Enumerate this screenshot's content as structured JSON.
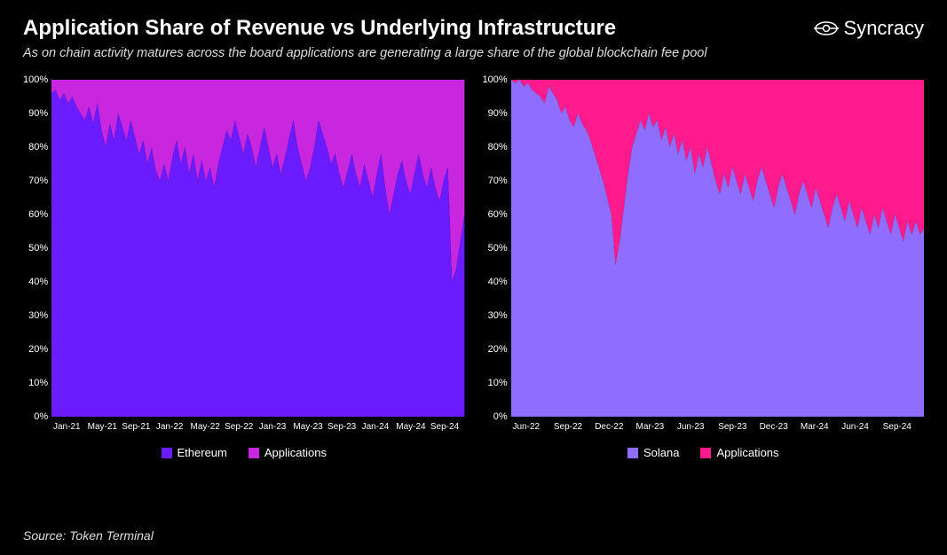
{
  "header": {
    "title": "Application Share of Revenue vs Underlying Infrastructure",
    "subtitle": "As on chain activity matures across the board applications are generating a large share of the global blockchain fee pool",
    "logo_text": "Syncracy"
  },
  "source": "Source: Token Terminal",
  "chart_common": {
    "type": "stacked-area-100pct",
    "ylim": [
      0,
      100
    ],
    "ytick_step": 10,
    "yticks": [
      "100%",
      "90%",
      "80%",
      "70%",
      "60%",
      "50%",
      "40%",
      "30%",
      "20%",
      "10%",
      "0%"
    ],
    "background_color": "#000000",
    "grid_color": "#444444",
    "axis_text_color": "#ffffff",
    "title_color": "#ffffff",
    "title_fontsize": 24,
    "subtitle_fontsize": 14.5,
    "label_fontsize": 11,
    "legend_fontsize": 13
  },
  "left_chart": {
    "name": "ethereum-share",
    "x_labels": [
      "Jan-21",
      "May-21",
      "Sep-21",
      "Jan-22",
      "May-22",
      "Sep-22",
      "Jan-23",
      "May-23",
      "Sep-23",
      "Jan-24",
      "May-24",
      "Sep-24"
    ],
    "legend": [
      {
        "label": "Ethereum",
        "color": "#6a1bff"
      },
      {
        "label": "Applications",
        "color": "#c926e0"
      }
    ],
    "series_bottom_color": "#6a1bff",
    "series_top_color": "#c926e0",
    "bottom_pct": [
      96,
      97,
      94,
      96,
      93,
      95,
      92,
      90,
      88,
      92,
      87,
      93,
      85,
      80,
      87,
      82,
      90,
      86,
      82,
      88,
      83,
      78,
      82,
      75,
      80,
      73,
      70,
      75,
      70,
      77,
      82,
      75,
      80,
      72,
      78,
      70,
      76,
      70,
      74,
      68,
      75,
      80,
      85,
      82,
      88,
      83,
      78,
      84,
      80,
      74,
      80,
      86,
      80,
      74,
      78,
      72,
      77,
      83,
      88,
      80,
      75,
      70,
      74,
      80,
      88,
      84,
      80,
      75,
      78,
      72,
      68,
      73,
      78,
      72,
      68,
      75,
      70,
      65,
      72,
      78,
      68,
      60,
      66,
      72,
      76,
      70,
      66,
      72,
      78,
      72,
      68,
      74,
      68,
      64,
      70,
      74,
      40,
      44,
      52,
      60
    ]
  },
  "right_chart": {
    "name": "solana-share",
    "x_labels": [
      "Jun-22",
      "Sep-22",
      "Dec-22",
      "Mar-23",
      "Jun-23",
      "Sep-23",
      "Dec-23",
      "Mar-24",
      "Jun-24",
      "Sep-24"
    ],
    "legend": [
      {
        "label": "Solana",
        "color": "#8f6eff"
      },
      {
        "label": "Applications",
        "color": "#ff1b8d"
      }
    ],
    "series_bottom_color": "#8f6eff",
    "series_top_color": "#ff1b8d",
    "bottom_pct": [
      100,
      99,
      100,
      98,
      99,
      97,
      96,
      95,
      93,
      98,
      96,
      94,
      90,
      92,
      88,
      86,
      90,
      87,
      85,
      82,
      78,
      74,
      70,
      65,
      60,
      45,
      52,
      62,
      72,
      80,
      84,
      88,
      85,
      90,
      86,
      88,
      82,
      86,
      80,
      84,
      78,
      82,
      76,
      80,
      72,
      78,
      74,
      80,
      75,
      70,
      66,
      72,
      68,
      74,
      70,
      66,
      72,
      68,
      64,
      70,
      74,
      70,
      66,
      62,
      68,
      72,
      68,
      64,
      60,
      66,
      70,
      66,
      62,
      68,
      64,
      60,
      56,
      62,
      66,
      62,
      58,
      64,
      60,
      56,
      62,
      58,
      54,
      60,
      56,
      62,
      58,
      54,
      60,
      56,
      52,
      58,
      54,
      58,
      54,
      56
    ]
  }
}
